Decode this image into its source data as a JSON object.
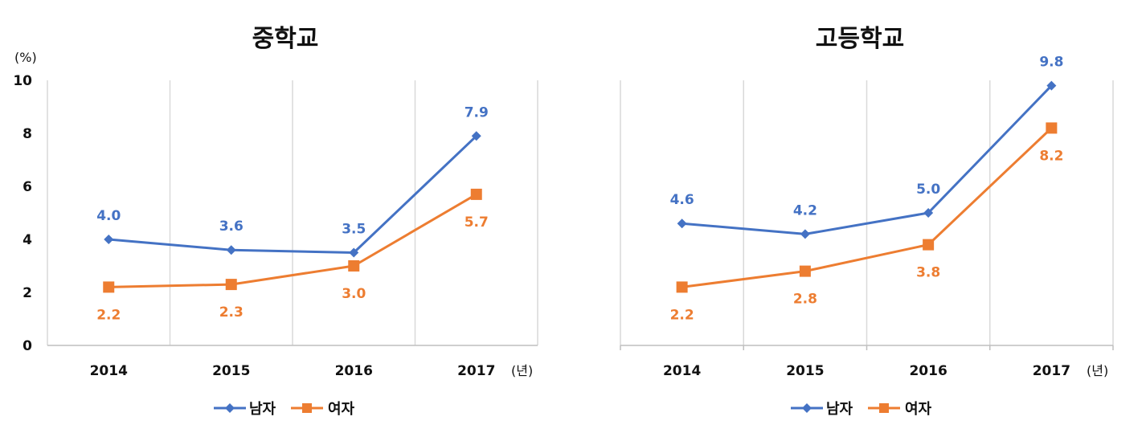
{
  "units": {
    "y_unit": "(%)",
    "x_unit": "(년)"
  },
  "colors": {
    "male": "#4472C4",
    "female": "#ED7D31",
    "grid": "#D9D9D9",
    "axis": "#BFBFBF"
  },
  "chart_data": [
    {
      "type": "line",
      "title": "중학교",
      "categories": [
        "2014",
        "2015",
        "2016",
        "2017"
      ],
      "ylim": [
        0,
        10
      ],
      "yticks": [
        0,
        2,
        4,
        6,
        8,
        10
      ],
      "grid": "vertical",
      "legend_position": "bottom",
      "series": [
        {
          "name": "남자",
          "values": [
            4.0,
            3.6,
            3.5,
            7.9
          ],
          "labels": [
            "4.0",
            "3.6",
            "3.5",
            "7.9"
          ]
        },
        {
          "name": "여자",
          "values": [
            2.2,
            2.3,
            3.0,
            5.7
          ],
          "labels": [
            "2.2",
            "2.3",
            "3.0",
            "5.7"
          ]
        }
      ]
    },
    {
      "type": "line",
      "title": "고등학교",
      "categories": [
        "2014",
        "2015",
        "2016",
        "2017"
      ],
      "ylim": [
        0,
        10
      ],
      "grid": "vertical",
      "legend_position": "bottom",
      "series": [
        {
          "name": "남자",
          "values": [
            4.6,
            4.2,
            5.0,
            9.8
          ],
          "labels": [
            "4.6",
            "4.2",
            "5.0",
            "9.8"
          ]
        },
        {
          "name": "여자",
          "values": [
            2.2,
            2.8,
            3.8,
            8.2
          ],
          "labels": [
            "2.2",
            "2.8",
            "3.8",
            "8.2"
          ]
        }
      ]
    }
  ]
}
